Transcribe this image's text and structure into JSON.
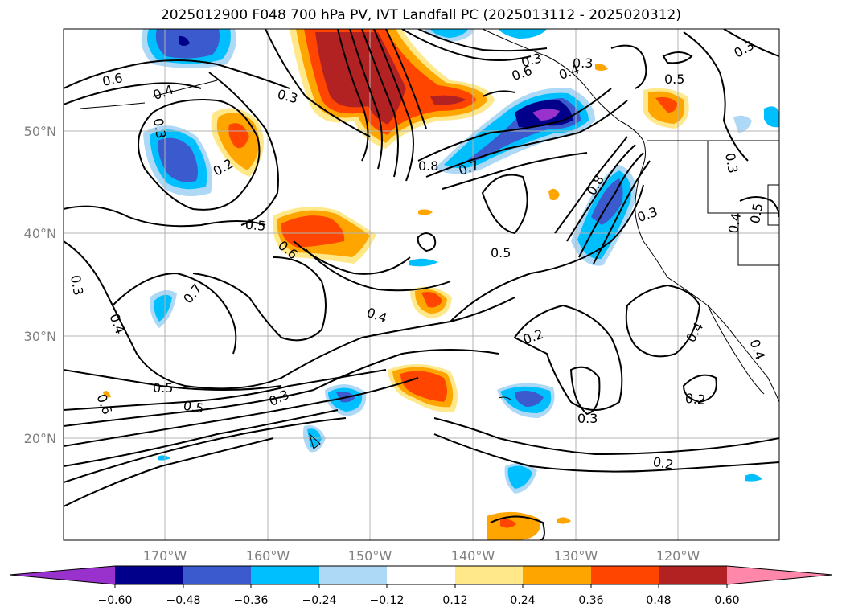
{
  "title": "2025012900 F048 700 hPa PV, IVT Landfall PC (2025013112 - 2025020312)",
  "map": {
    "lon_labels": [
      "170°W",
      "160°W",
      "150°W",
      "140°W",
      "130°W",
      "120°W"
    ],
    "lat_labels": [
      "50°N",
      "40°N",
      "30°N",
      "20°N"
    ],
    "contour_labels": [
      {
        "text": "0.6",
        "rot": -12
      },
      {
        "text": "0.4",
        "rot": -20
      },
      {
        "text": "0.3",
        "rot": 15
      },
      {
        "text": "0.3",
        "rot": 80
      },
      {
        "text": "0.2",
        "rot": -30
      },
      {
        "text": "0.3",
        "rot": -15
      },
      {
        "text": "0.6",
        "rot": -20
      },
      {
        "text": "0.4",
        "rot": -20
      },
      {
        "text": "0.3",
        "rot": 0
      },
      {
        "text": "0.5",
        "rot": 0
      },
      {
        "text": "0.3",
        "rot": -30
      },
      {
        "text": "0.8",
        "rot": 0
      },
      {
        "text": "0.7",
        "rot": -20
      },
      {
        "text": "0.8",
        "rot": -60
      },
      {
        "text": "0.3",
        "rot": -20
      },
      {
        "text": "0.3",
        "rot": 80
      },
      {
        "text": "0.4",
        "rot": -80
      },
      {
        "text": "0.5",
        "rot": -80
      },
      {
        "text": "0.5",
        "rot": 5
      },
      {
        "text": "0.6",
        "rot": 40
      },
      {
        "text": "0.7",
        "rot": -50
      },
      {
        "text": "0.5",
        "rot": 0
      },
      {
        "text": "0.3",
        "rot": 80
      },
      {
        "text": "0.4",
        "rot": 70
      },
      {
        "text": "0.4",
        "rot": 20
      },
      {
        "text": "0.2",
        "rot": -20
      },
      {
        "text": "0.4",
        "rot": -60
      },
      {
        "text": "0.4",
        "rot": 70
      },
      {
        "text": "0.5",
        "rot": 0
      },
      {
        "text": "0.5",
        "rot": 10
      },
      {
        "text": "0.3",
        "rot": -25
      },
      {
        "text": "0.6",
        "rot": 70
      },
      {
        "text": "0.3",
        "rot": 0
      },
      {
        "text": "0.2",
        "rot": 5
      },
      {
        "text": "0.2",
        "rot": 10
      }
    ]
  },
  "colorbar": {
    "ticks": [
      "−0.60",
      "−0.48",
      "−0.36",
      "−0.24",
      "−0.12",
      "0.12",
      "0.24",
      "0.36",
      "0.48",
      "0.60"
    ],
    "colors": {
      "under": "#9932cc",
      "n060": "#00008b",
      "n048": "#3a5acd",
      "n036": "#00bfff",
      "n024": "#add8f6",
      "zero": "#ffffff",
      "p012": "#ffe88a",
      "p024": "#ffa500",
      "p036": "#ff4500",
      "p048": "#b22222",
      "over": "#ff88aa"
    }
  }
}
